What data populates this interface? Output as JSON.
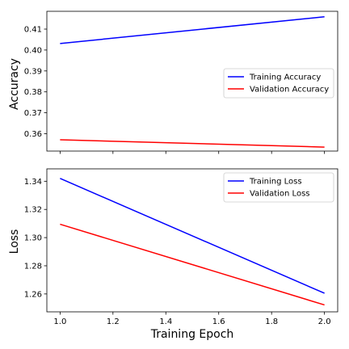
{
  "chart_data": [
    {
      "type": "line",
      "title": "",
      "xlabel": "",
      "ylabel": "Accuracy",
      "xlim": [
        0.95,
        2.05
      ],
      "ylim": [
        0.3517,
        0.4185
      ],
      "x_ticks": [
        1.0,
        1.2,
        1.4,
        1.6,
        1.8,
        2.0
      ],
      "x_tick_labels_shown": false,
      "y_ticks": [
        0.36,
        0.37,
        0.38,
        0.39,
        0.4,
        0.41
      ],
      "y_tick_labels": [
        "0.36",
        "0.37",
        "0.38",
        "0.39",
        "0.40",
        "0.41"
      ],
      "grid": false,
      "legend_position": "center-right",
      "series": [
        {
          "name": "Training Accuracy",
          "color": "#0000ff",
          "x": [
            1,
            2
          ],
          "y": [
            0.4031,
            0.4159
          ]
        },
        {
          "name": "Validation Accuracy",
          "color": "#ff0000",
          "x": [
            1,
            2
          ],
          "y": [
            0.3571,
            0.3536
          ]
        }
      ]
    },
    {
      "type": "line",
      "title": "",
      "xlabel": "Training Epoch",
      "ylabel": "Loss",
      "xlim": [
        0.95,
        2.05
      ],
      "ylim": [
        1.2473,
        1.3488
      ],
      "x_ticks": [
        1.0,
        1.2,
        1.4,
        1.6,
        1.8,
        2.0
      ],
      "x_tick_labels": [
        "1.0",
        "1.2",
        "1.4",
        "1.6",
        "1.8",
        "2.0"
      ],
      "x_tick_labels_shown": true,
      "y_ticks": [
        1.26,
        1.28,
        1.3,
        1.32,
        1.34
      ],
      "y_tick_labels": [
        "1.26",
        "1.28",
        "1.30",
        "1.32",
        "1.34"
      ],
      "grid": false,
      "legend_position": "top-right",
      "series": [
        {
          "name": "Training Loss",
          "color": "#0000ff",
          "x": [
            1,
            2
          ],
          "y": [
            1.342,
            1.2605
          ]
        },
        {
          "name": "Validation Loss",
          "color": "#ff0000",
          "x": [
            1,
            2
          ],
          "y": [
            1.3095,
            1.2522
          ]
        }
      ]
    }
  ]
}
